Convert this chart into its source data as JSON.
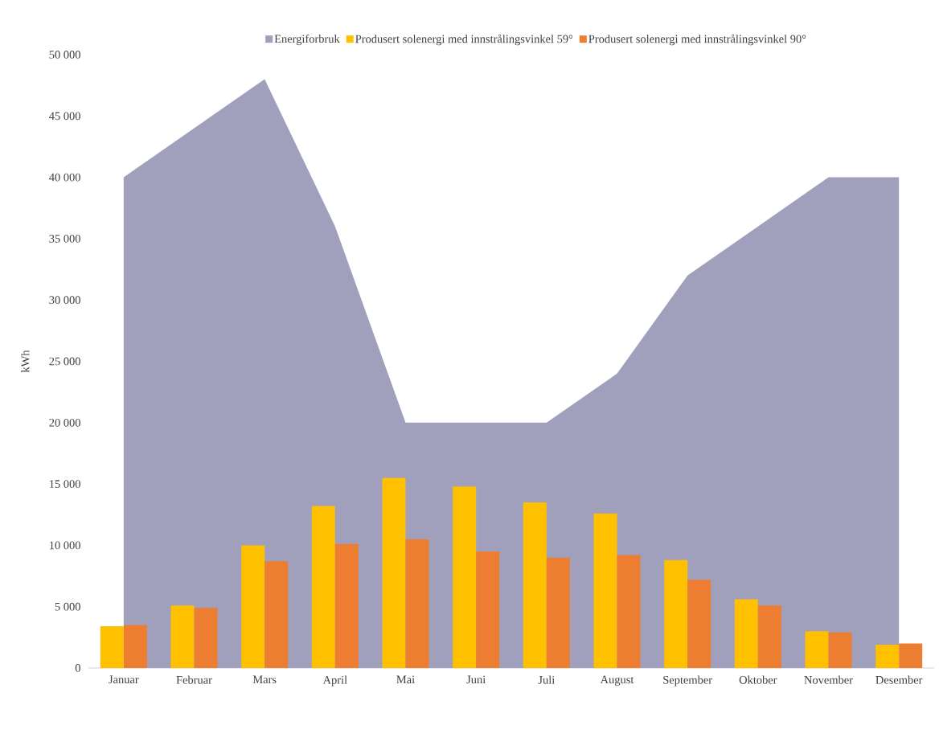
{
  "chart_data": {
    "type": "bar",
    "ylabel": "kWh",
    "legend": "top",
    "grid": false,
    "categories": [
      "Januar",
      "Februar",
      "Mars",
      "April",
      "Mai",
      "Juni",
      "Juli",
      "August",
      "September",
      "Oktober",
      "November",
      "Desember"
    ],
    "series": [
      {
        "name": "Energiforbruk",
        "type": "area",
        "color": "#a0a0bc",
        "values": [
          40000,
          44000,
          48000,
          36000,
          20000,
          20000,
          20000,
          24000,
          32000,
          36000,
          40000,
          40000
        ]
      },
      {
        "name": "Produsert solenergi med innstrålingsvinkel 59°",
        "color": "#ffc000",
        "values": [
          3400,
          5100,
          10000,
          13200,
          15500,
          14800,
          13500,
          12600,
          8800,
          5600,
          3000,
          1900
        ]
      },
      {
        "name": "Produsert solenergi med innstrålingsvinkel 90°",
        "color": "#ed7d31",
        "values": [
          3500,
          4900,
          8700,
          10100,
          10500,
          9500,
          9000,
          9200,
          7200,
          5100,
          2900,
          2000
        ]
      }
    ],
    "ylim": [
      0,
      50000
    ],
    "yticks": [
      0,
      {
        "value": 5000,
        "label": "5 000"
      },
      {
        "value": 10000,
        "label": "10 000"
      },
      {
        "value": 15000,
        "label": "15 000"
      },
      {
        "value": 20000,
        "label": "20 000"
      },
      {
        "value": 25000,
        "label": "25 000"
      },
      {
        "value": 30000,
        "label": "30 000"
      },
      {
        "value": 35000,
        "label": "35 000"
      },
      {
        "value": 40000,
        "label": "40 000"
      },
      {
        "value": 45000,
        "label": "45 000"
      },
      {
        "value": 50000,
        "label": "50 000"
      }
    ]
  }
}
